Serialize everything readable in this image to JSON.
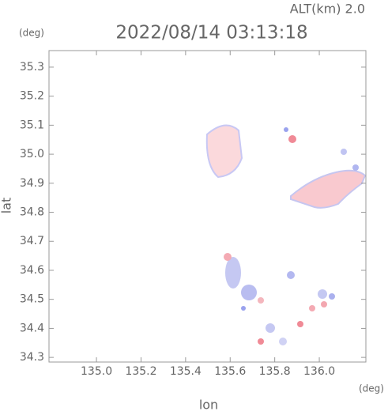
{
  "chart_data": {
    "type": "map",
    "title": "2022/08/14 03:13:18",
    "subtitle": "ALT(km)  2.0",
    "x_label": "lon",
    "y_label": "lat",
    "x_unit": "(deg)",
    "y_unit": "(deg)",
    "xlim": [
      134.787,
      136.209
    ],
    "ylim": [
      34.284,
      35.357
    ],
    "xticks": [
      {
        "value": 135,
        "label": "135.0"
      },
      135.2,
      135.4,
      135.6,
      135.8,
      {
        "value": 136,
        "label": "136.0"
      }
    ],
    "yticks": [
      35.3,
      35.2,
      35.1,
      {
        "value": 35,
        "label": "35.0"
      },
      34.9,
      34.8,
      34.7,
      34.6,
      34.5,
      34.4,
      34.3
    ],
    "grid": false
  }
}
